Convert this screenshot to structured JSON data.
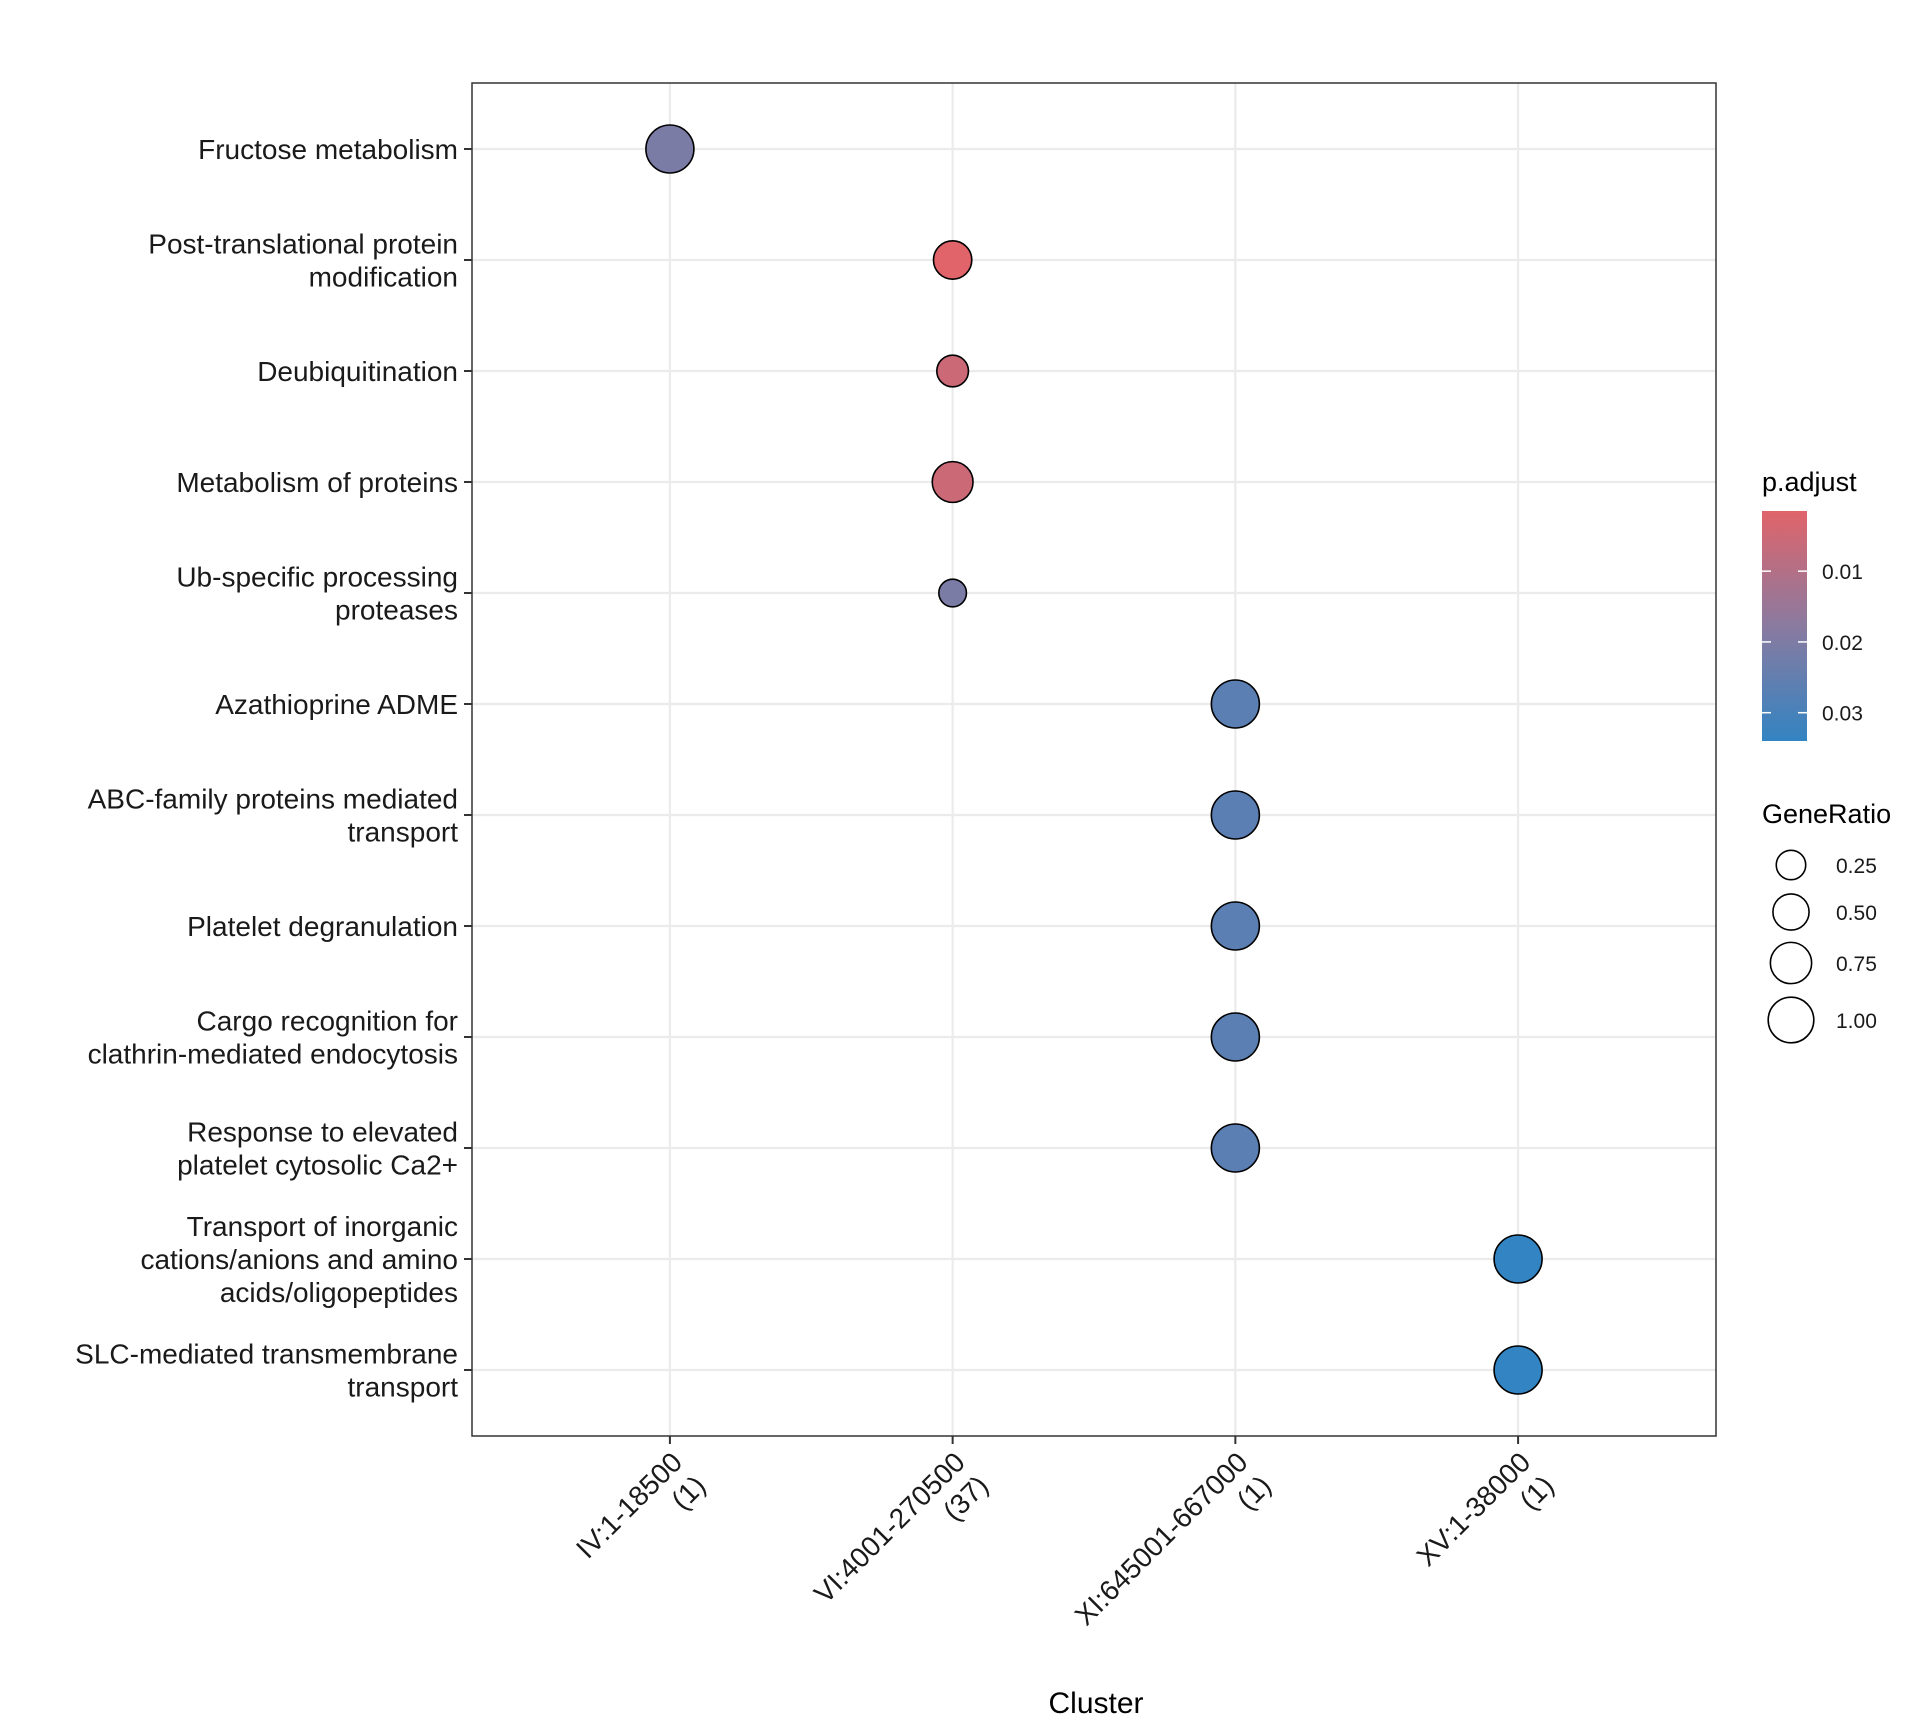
{
  "chart_data": {
    "type": "scatter",
    "xlabel": "Cluster",
    "ylabel": "",
    "categories": [
      "IV:1-18500\n(1)",
      "VI:4001-270500\n(37)",
      "XI:645001-667000\n(1)",
      "XV:1-38000\n(1)"
    ],
    "terms": [
      "Fructose metabolism",
      "Post-translational protein\nmodification",
      "Deubiquitination",
      "Metabolism of proteins",
      "Ub-specific processing\nproteases",
      "Azathioprine ADME",
      "ABC-family proteins mediated\ntransport",
      "Platelet degranulation",
      "Cargo recognition for\nclathrin-mediated endocytosis",
      "Response to elevated\nplatelet cytosolic Ca2+",
      "Transport of inorganic\ncations/anions and amino\nacids/oligopeptides",
      "SLC-mediated transmembrane\ntransport"
    ],
    "points": [
      {
        "cluster": "IV:1-18500\n(1)",
        "term": "Fructose metabolism",
        "gene_ratio": 1.0,
        "p_adjust": 0.0205
      },
      {
        "cluster": "VI:4001-270500\n(37)",
        "term": "Post-translational protein\nmodification",
        "gene_ratio": 0.51,
        "p_adjust": 0.0015
      },
      {
        "cluster": "VI:4001-270500\n(37)",
        "term": "Deubiquitination",
        "gene_ratio": 0.27,
        "p_adjust": 0.0055
      },
      {
        "cluster": "VI:4001-270500\n(37)",
        "term": "Metabolism of proteins",
        "gene_ratio": 0.62,
        "p_adjust": 0.0055
      },
      {
        "cluster": "VI:4001-270500\n(37)",
        "term": "Ub-specific processing\nproteases",
        "gene_ratio": 0.16,
        "p_adjust": 0.0205
      },
      {
        "cluster": "XI:645001-667000\n(1)",
        "term": "Azathioprine ADME",
        "gene_ratio": 1.0,
        "p_adjust": 0.0265
      },
      {
        "cluster": "XI:645001-667000\n(1)",
        "term": "ABC-family proteins mediated\ntransport",
        "gene_ratio": 1.0,
        "p_adjust": 0.0265
      },
      {
        "cluster": "XI:645001-667000\n(1)",
        "term": "Platelet degranulation",
        "gene_ratio": 1.0,
        "p_adjust": 0.0265
      },
      {
        "cluster": "XI:645001-667000\n(1)",
        "term": "Cargo recognition for\nclathrin-mediated endocytosis",
        "gene_ratio": 1.0,
        "p_adjust": 0.0265
      },
      {
        "cluster": "XI:645001-667000\n(1)",
        "term": "Response to elevated\nplatelet cytosolic Ca2+",
        "gene_ratio": 1.0,
        "p_adjust": 0.0265
      },
      {
        "cluster": "XV:1-38000\n(1)",
        "term": "Transport of inorganic\ncations/anions and amino\nacids/oligopeptides",
        "gene_ratio": 1.0,
        "p_adjust": 0.034
      },
      {
        "cluster": "XV:1-38000\n(1)",
        "term": "SLC-mediated transmembrane\ntransport",
        "gene_ratio": 1.0,
        "p_adjust": 0.034
      }
    ],
    "color_legend": {
      "title": "p.adjust",
      "low_color": "#e0646a",
      "mid_color": "#8a7aa0",
      "high_color": "#3384c2",
      "range": [
        0.0015,
        0.034
      ],
      "ticks": [
        0.01,
        0.02,
        0.03
      ],
      "tick_labels": [
        "0.01",
        "0.02",
        "0.03"
      ]
    },
    "size_legend": {
      "title": "GeneRatio",
      "values": [
        0.25,
        0.5,
        0.75,
        1.0
      ],
      "labels": [
        "0.25",
        "0.50",
        "0.75",
        "1.00"
      ]
    },
    "grid": true,
    "legend_position": "right"
  }
}
